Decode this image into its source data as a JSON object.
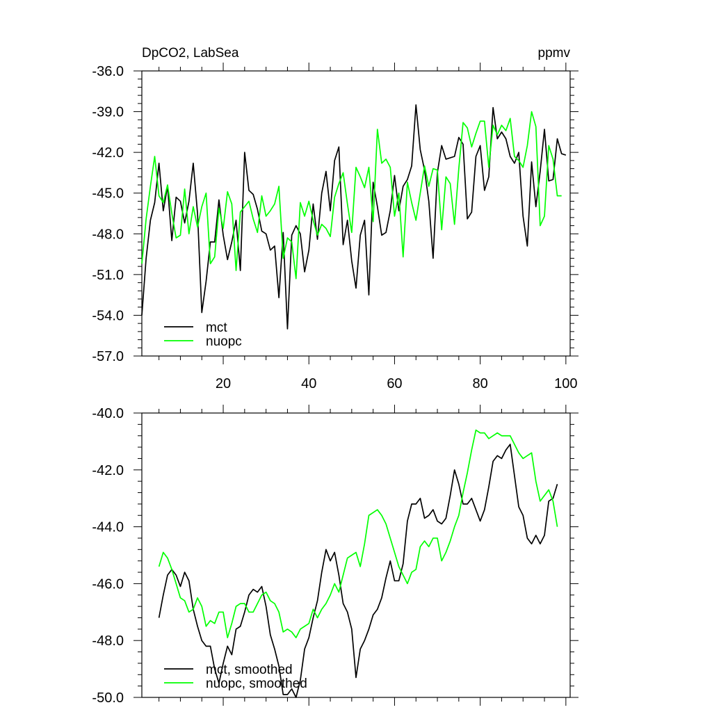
{
  "chart_data": [
    {
      "type": "line",
      "title_left": "DpCO2, LabSea",
      "title_right": "ppmv",
      "xlim": [
        1,
        101
      ],
      "ylim": [
        -57,
        -36
      ],
      "x_ticks": [
        20,
        40,
        60,
        80,
        100
      ],
      "y_ticks": [
        -36.0,
        -39.0,
        -42.0,
        -45.0,
        -48.0,
        -51.0,
        -54.0,
        -57.0
      ],
      "y_tick_labels": [
        "-36.0",
        "-39.0",
        "-42.0",
        "-45.0",
        "-48.0",
        "-51.0",
        "-54.0",
        "-57.0"
      ],
      "x_tick_labels": [
        "20",
        "40",
        "60",
        "80",
        "100"
      ],
      "legend_position": "bottom-left",
      "series": [
        {
          "name": "mct",
          "color": "#000000",
          "x_start": 1,
          "values": [
            -54.0,
            -49.8,
            -47.0,
            -45.7,
            -42.8,
            -46.3,
            -44.5,
            -48.5,
            -45.3,
            -45.6,
            -47.2,
            -45.6,
            -42.8,
            -46.5,
            -53.8,
            -51.5,
            -48.6,
            -48.6,
            -45.5,
            -48.1,
            -49.9,
            -48.6,
            -47.0,
            -50.7,
            -42.0,
            -44.8,
            -45.1,
            -46.2,
            -47.8,
            -48.0,
            -49.2,
            -48.9,
            -52.7,
            -47.9,
            -55.0,
            -48.1,
            -47.4,
            -48.0,
            -50.8,
            -49.2,
            -45.8,
            -48.4,
            -45.0,
            -43.4,
            -46.3,
            -42.6,
            -41.6,
            -48.8,
            -47.0,
            -50.0,
            -52.0,
            -48.1,
            -47.0,
            -52.5,
            -44.2,
            -46.0,
            -48.1,
            -47.9,
            -46.3,
            -43.7,
            -46.3,
            -44.5,
            -44.0,
            -43.0,
            -38.5,
            -41.8,
            -43.3,
            -45.6,
            -49.8,
            -43.5,
            -41.5,
            -42.5,
            -42.4,
            -42.3,
            -40.9,
            -41.4,
            -46.9,
            -46.4,
            -42.3,
            -41.5,
            -44.8,
            -43.8,
            -38.7,
            -41.0,
            -40.5,
            -41.0,
            -42.3,
            -42.8,
            -42.0,
            -46.7,
            -48.9,
            -42.7,
            -46.0,
            -43.4,
            -40.3,
            -44.1,
            -44.0,
            -41.0,
            -42.1,
            -42.2
          ]
        },
        {
          "name": "nuopc",
          "color": "#00ff00",
          "x_start": 1,
          "values": [
            -50.2,
            -46.9,
            -44.5,
            -42.3,
            -45.2,
            -45.7,
            -44.4,
            -46.5,
            -48.3,
            -48.1,
            -44.7,
            -48.0,
            -46.0,
            -47.5,
            -46.0,
            -45.0,
            -50.2,
            -49.7,
            -46.1,
            -47.6,
            -44.9,
            -45.8,
            -50.7,
            -46.4,
            -46.0,
            -45.6,
            -46.9,
            -47.9,
            -45.2,
            -46.7,
            -46.3,
            -45.8,
            -44.5,
            -49.8,
            -48.3,
            -48.6,
            -51.3,
            -45.7,
            -46.7,
            -45.6,
            -47.0,
            -48.1,
            -47.3,
            -47.6,
            -48.2,
            -45.3,
            -44.3,
            -43.5,
            -45.8,
            -47.9,
            -43.1,
            -43.8,
            -44.6,
            -43.1,
            -47.1,
            -40.3,
            -42.8,
            -42.5,
            -43.1,
            -46.7,
            -45.0,
            -49.7,
            -44.2,
            -45.7,
            -47.0,
            -45.0,
            -43.0,
            -44.5,
            -43.2,
            -43.3,
            -47.7,
            -43.8,
            -44.3,
            -47.3,
            -43.2,
            -39.8,
            -40.2,
            -41.6,
            -40.6,
            -39.7,
            -39.7,
            -43.1,
            -40.0,
            -40.7,
            -40.0,
            -40.4,
            -39.5,
            -42.3,
            -42.6,
            -43.1,
            -41.5,
            -39.0,
            -40.1,
            -47.4,
            -46.7,
            -41.5,
            -42.5,
            -45.2,
            -45.2
          ]
        }
      ]
    },
    {
      "type": "line",
      "xlim": [
        1,
        101
      ],
      "ylim": [
        -50,
        -40
      ],
      "y_ticks": [
        -40.0,
        -42.0,
        -44.0,
        -46.0,
        -48.0,
        -50.0
      ],
      "y_tick_labels": [
        "-40.0",
        "-42.0",
        "-44.0",
        "-46.0",
        "-48.0",
        "-50.0"
      ],
      "legend_position": "bottom-left",
      "series": [
        {
          "name": "mct, smoothed",
          "color": "#000000",
          "x_start": 5,
          "values": [
            -47.2,
            -46.4,
            -45.7,
            -45.5,
            -45.7,
            -46.1,
            -45.6,
            -45.9,
            -46.9,
            -47.5,
            -48.0,
            -48.2,
            -48.2,
            -49.0,
            -49.5,
            -48.8,
            -48.2,
            -48.5,
            -47.6,
            -47.5,
            -47.0,
            -46.4,
            -46.2,
            -46.3,
            -46.1,
            -46.8,
            -47.8,
            -48.3,
            -48.9,
            -49.9,
            -49.9,
            -49.7,
            -50.0,
            -49.4,
            -48.3,
            -47.9,
            -47.2,
            -46.6,
            -45.6,
            -44.8,
            -45.2,
            -44.9,
            -45.7,
            -46.7,
            -47.0,
            -47.6,
            -49.3,
            -48.3,
            -48.0,
            -47.6,
            -47.1,
            -46.9,
            -46.5,
            -45.8,
            -45.2,
            -45.9,
            -45.9,
            -45.3,
            -43.8,
            -43.2,
            -43.2,
            -43.0,
            -43.7,
            -43.6,
            -43.4,
            -43.8,
            -43.9,
            -43.7,
            -42.9,
            -42.0,
            -42.5,
            -43.2,
            -43.2,
            -43.0,
            -43.4,
            -43.8,
            -43.4,
            -42.6,
            -41.7,
            -41.5,
            -41.6,
            -41.3,
            -41.1,
            -42.2,
            -43.3,
            -43.6,
            -44.4,
            -44.6,
            -44.3,
            -44.6,
            -44.3,
            -43.1,
            -43.0,
            -42.5
          ]
        },
        {
          "name": "nuopc, smoothed",
          "color": "#00ff00",
          "x_start": 5,
          "values": [
            -45.4,
            -44.9,
            -45.1,
            -45.5,
            -46.0,
            -46.5,
            -46.6,
            -47.0,
            -46.9,
            -46.5,
            -46.8,
            -47.5,
            -47.3,
            -47.4,
            -47.0,
            -47.0,
            -47.9,
            -47.4,
            -46.8,
            -46.7,
            -46.7,
            -47.0,
            -47.0,
            -46.7,
            -46.4,
            -46.3,
            -46.6,
            -46.7,
            -47.0,
            -47.7,
            -47.6,
            -47.7,
            -47.9,
            -47.6,
            -47.5,
            -47.4,
            -46.9,
            -47.2,
            -46.9,
            -46.7,
            -46.4,
            -46.0,
            -46.3,
            -45.7,
            -45.1,
            -45.0,
            -44.9,
            -45.4,
            -44.6,
            -43.6,
            -43.5,
            -43.4,
            -43.6,
            -43.9,
            -44.4,
            -44.9,
            -45.4,
            -45.7,
            -46.0,
            -45.6,
            -45.5,
            -44.7,
            -44.5,
            -44.7,
            -44.4,
            -44.4,
            -45.2,
            -44.9,
            -44.5,
            -44.0,
            -43.6,
            -42.8,
            -42.1,
            -41.3,
            -40.6,
            -40.7,
            -40.7,
            -40.9,
            -40.8,
            -40.7,
            -40.8,
            -40.8,
            -40.8,
            -41.1,
            -41.4,
            -41.6,
            -41.5,
            -41.4,
            -42.4,
            -43.1,
            -42.9,
            -42.7,
            -43.1,
            -44.0
          ]
        }
      ]
    }
  ]
}
